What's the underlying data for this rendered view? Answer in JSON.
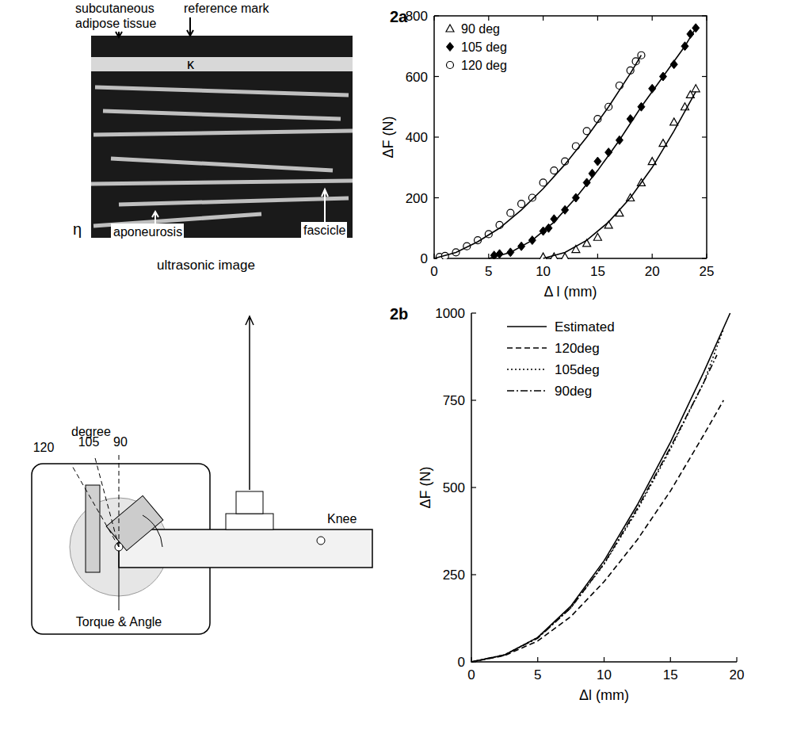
{
  "chart_data": [
    {
      "type": "scatter",
      "title": "2a",
      "x_label": "Δ l (mm)",
      "y_label": "ΔF (N)",
      "xlim": [
        0,
        25
      ],
      "ylim": [
        0,
        800
      ],
      "xticks": [
        0,
        5,
        10,
        15,
        20,
        25
      ],
      "yticks": [
        0,
        200,
        400,
        600,
        800
      ],
      "legend": "upper left",
      "grid": false,
      "series": [
        {
          "name": "90 deg",
          "type": "scatter",
          "marker": "triangle",
          "color": "#000000",
          "x": [
            10,
            11,
            12,
            13,
            14,
            15,
            16,
            17,
            18,
            19,
            20,
            21,
            22,
            23,
            23.5,
            24
          ],
          "values": [
            5,
            5,
            5,
            30,
            50,
            70,
            110,
            150,
            200,
            250,
            320,
            380,
            450,
            500,
            540,
            560
          ]
        },
        {
          "name": "105 deg",
          "type": "scatter",
          "marker": "diamond",
          "color": "#000000",
          "x": [
            5.5,
            6,
            7,
            8,
            9,
            10,
            10.5,
            11,
            12,
            13,
            14,
            14.5,
            15,
            16,
            17,
            18,
            19,
            20,
            21,
            22,
            23,
            23.5,
            24
          ],
          "values": [
            10,
            15,
            20,
            40,
            60,
            90,
            100,
            130,
            160,
            200,
            250,
            280,
            320,
            350,
            390,
            460,
            500,
            560,
            600,
            640,
            700,
            740,
            760
          ]
        },
        {
          "name": "120 deg",
          "type": "scatter",
          "marker": "circle",
          "color": "#000000",
          "x": [
            0.5,
            1,
            2,
            3,
            4,
            5,
            6,
            7,
            8,
            9,
            10,
            11,
            12,
            13,
            14,
            15,
            16,
            17,
            18,
            18.5,
            19
          ],
          "values": [
            5,
            8,
            20,
            40,
            60,
            80,
            110,
            150,
            180,
            200,
            250,
            290,
            320,
            370,
            420,
            460,
            500,
            570,
            620,
            650,
            670
          ]
        },
        {
          "type": "line",
          "line_style": "solid",
          "color": "#000000",
          "x": [
            10,
            12,
            14,
            16,
            18,
            20,
            22,
            24
          ],
          "values": [
            0,
            20,
            60,
            120,
            200,
            300,
            420,
            550
          ]
        },
        {
          "type": "line",
          "line_style": "solid",
          "color": "#000000",
          "x": [
            5,
            7,
            9,
            11,
            13,
            15,
            17,
            19,
            21,
            23,
            24
          ],
          "values": [
            0,
            20,
            60,
            120,
            200,
            290,
            390,
            500,
            600,
            700,
            760
          ]
        },
        {
          "type": "line",
          "line_style": "solid",
          "color": "#000000",
          "x": [
            0,
            2,
            4,
            6,
            8,
            10,
            12,
            14,
            16,
            18,
            19
          ],
          "values": [
            0,
            20,
            55,
            100,
            160,
            230,
            310,
            400,
            500,
            610,
            670
          ]
        }
      ]
    },
    {
      "type": "line",
      "title": "2b",
      "x_label": "Δl (mm)",
      "y_label": "ΔF (N)",
      "xlim": [
        0,
        20
      ],
      "ylim": [
        0,
        1000
      ],
      "xticks": [
        0,
        5,
        10,
        15,
        20
      ],
      "yticks": [
        0,
        250,
        500,
        750,
        1000
      ],
      "legend": "upper left",
      "grid": false,
      "series": [
        {
          "name": "Estimated",
          "line_style": "solid",
          "color": "#000000",
          "x": [
            0,
            2.5,
            5,
            7.5,
            10,
            12.5,
            15,
            17.5,
            19.5
          ],
          "values": [
            0,
            20,
            70,
            160,
            290,
            450,
            630,
            830,
            1000
          ]
        },
        {
          "name": "120deg",
          "line_style": "dashed",
          "color": "#000000",
          "x": [
            0,
            2.5,
            5,
            7.5,
            10,
            12.5,
            15,
            17.5,
            19
          ],
          "values": [
            0,
            18,
            60,
            130,
            230,
            350,
            490,
            650,
            750
          ]
        },
        {
          "name": "105deg",
          "line_style": "dotted",
          "color": "#000000",
          "x": [
            0,
            2.5,
            5,
            7.5,
            10,
            12.5,
            15,
            17.5,
            19
          ],
          "values": [
            0,
            20,
            70,
            155,
            280,
            435,
            610,
            800,
            955
          ]
        },
        {
          "name": "90deg",
          "line_style": "dashdot",
          "color": "#000000",
          "x": [
            0,
            2.5,
            5,
            7.5,
            10,
            12.5,
            15,
            17.5,
            18.5
          ],
          "values": [
            0,
            20,
            68,
            155,
            282,
            440,
            615,
            800,
            880
          ]
        }
      ]
    }
  ],
  "ultrasound": {
    "caption": "ultrasonic image",
    "labels": [
      "subcutaneous adipose tissue",
      "reference mark",
      "κ",
      "η",
      "aponeurosis",
      "fascicle"
    ]
  },
  "diagram": {
    "labels": [
      "degree",
      "120",
      "105",
      "90",
      "Torque & Angle",
      "Knee"
    ]
  }
}
